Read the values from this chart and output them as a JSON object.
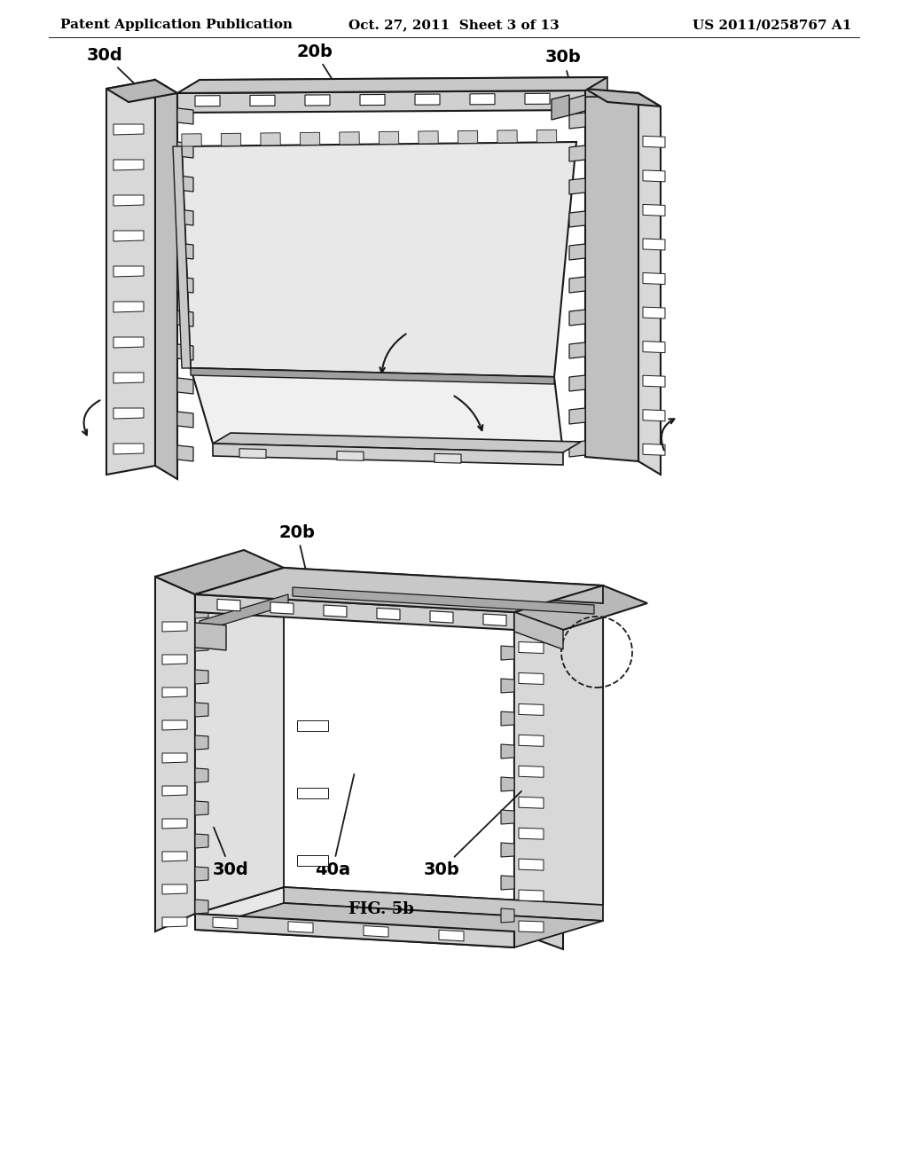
{
  "background_color": "#ffffff",
  "header_left": "Patent Application Publication",
  "header_center": "Oct. 27, 2011  Sheet 3 of 13",
  "header_right": "US 2011/0258767 A1",
  "line_color": "#1a1a1a",
  "annotation_fontsize": 14,
  "caption_fontsize": 13,
  "header_fontsize": 11
}
